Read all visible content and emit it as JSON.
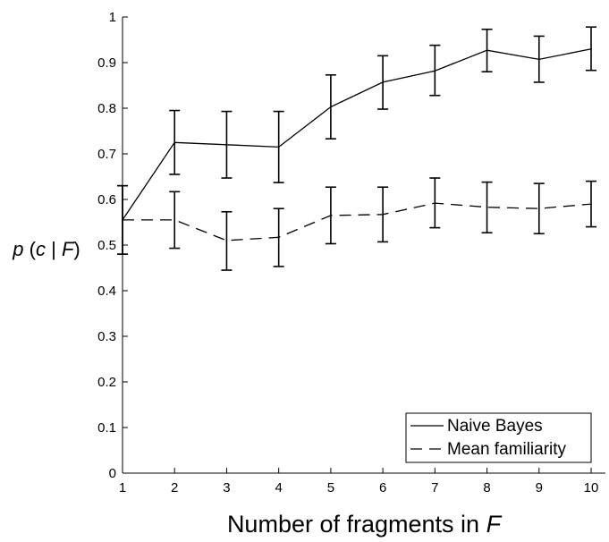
{
  "chart_data": {
    "type": "line",
    "x": [
      1,
      2,
      3,
      4,
      5,
      6,
      7,
      8,
      9,
      10
    ],
    "xlabel_main": "Number of fragments in ",
    "xlabel_var": "F",
    "ylabel": {
      "p": "p",
      "open": " (",
      "c": "c",
      "bar": " | ",
      "F": "F",
      "close": ")"
    },
    "xlim": [
      1,
      10
    ],
    "ylim": [
      0,
      1
    ],
    "xticks": [
      "1",
      "2",
      "3",
      "4",
      "5",
      "6",
      "7",
      "8",
      "9",
      "10"
    ],
    "yticks": [
      "0",
      "0.1",
      "0.2",
      "0.3",
      "0.4",
      "0.5",
      "0.6",
      "0.7",
      "0.8",
      "0.9",
      "1"
    ],
    "legend_position": "bottom-right",
    "series": [
      {
        "name": "Naive Bayes",
        "line_style": "solid",
        "values": [
          0.555,
          0.725,
          0.72,
          0.715,
          0.803,
          0.857,
          0.882,
          0.927,
          0.907,
          0.93
        ],
        "err_low": [
          0.48,
          0.655,
          0.647,
          0.637,
          0.733,
          0.798,
          0.828,
          0.88,
          0.857,
          0.883
        ],
        "err_high": [
          0.63,
          0.795,
          0.793,
          0.793,
          0.873,
          0.915,
          0.938,
          0.973,
          0.958,
          0.978
        ]
      },
      {
        "name": "Mean familiarity",
        "line_style": "dashed",
        "values": [
          0.555,
          0.555,
          0.51,
          0.517,
          0.565,
          0.567,
          0.592,
          0.583,
          0.58,
          0.59
        ],
        "err_low": [
          0.48,
          0.493,
          0.445,
          0.453,
          0.503,
          0.507,
          0.538,
          0.527,
          0.525,
          0.54
        ],
        "err_high": [
          0.63,
          0.617,
          0.573,
          0.58,
          0.627,
          0.627,
          0.647,
          0.638,
          0.635,
          0.64
        ]
      }
    ]
  }
}
